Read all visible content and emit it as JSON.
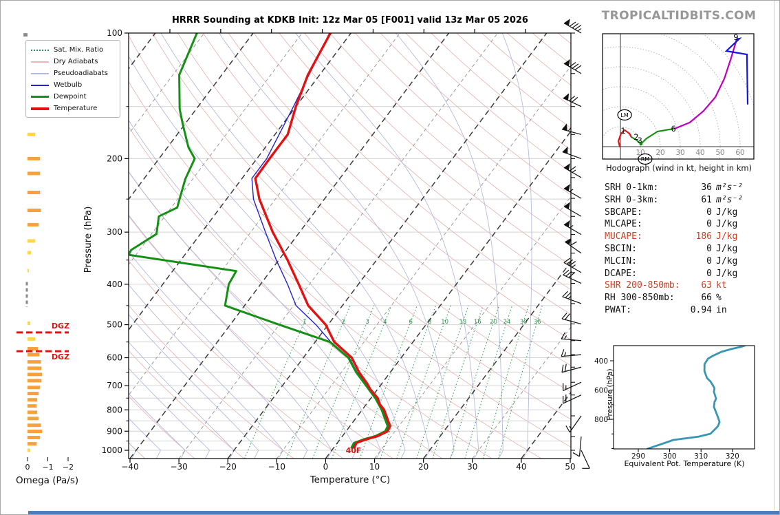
{
  "title": "HRRR Sounding at KDKB Init: 12z Mar 05 [F001] valid 13z Mar 05 2026",
  "watermark": "TROPICALTIDBITS.COM",
  "skewt": {
    "xlabel": "Temperature (°C)",
    "ylabel": "Pressure (hPa)",
    "x_ticks": [
      -40,
      -30,
      -20,
      -10,
      0,
      10,
      20,
      30,
      40,
      50
    ],
    "p_ticks": [
      100,
      200,
      300,
      400,
      500,
      600,
      700,
      800,
      900,
      1000
    ],
    "mix_ratio_labels": [
      1,
      2,
      3,
      4,
      6,
      8,
      10,
      13,
      16,
      20,
      24,
      30,
      36
    ],
    "surface_temp_label": "40F",
    "colors": {
      "temperature": "#e31212",
      "dewpoint": "#149114",
      "wetbulb": "#2222cc",
      "dry_adiabat": "#e6b8b8",
      "pseudoadiabat": "#b4bade",
      "mix_ratio": "#35a055",
      "isotherm_major": "#3a3a3a",
      "isotherm_minor": "#9a9a9a",
      "grid": "#d4d4d4"
    },
    "legend": [
      {
        "label": "Sat. Mix. Ratio",
        "style": "dotted",
        "color": "#2e8b57",
        "width": 2
      },
      {
        "label": "Dry Adiabats",
        "style": "solid",
        "color": "#e6b8b8",
        "width": 2
      },
      {
        "label": "Pseudoadiabats",
        "style": "solid",
        "color": "#b4bade",
        "width": 2
      },
      {
        "label": "Wetbulb",
        "style": "solid",
        "color": "#2222cc",
        "width": 2
      },
      {
        "label": "Dewpoint",
        "style": "solid",
        "color": "#149114",
        "width": 3
      },
      {
        "label": "Temperature",
        "style": "solid",
        "color": "#e31212",
        "width": 4
      }
    ]
  },
  "chart_data": [
    {
      "type": "line",
      "name": "sounding_profile",
      "xlabel": "Temperature (°C)",
      "ylabel": "Pressure (hPa)",
      "x_range": [
        -40,
        50
      ],
      "p_range": [
        100,
        1047
      ],
      "series": [
        {
          "name": "Temperature",
          "color": "#e31212",
          "points_p_T": [
            [
              985,
              4.2
            ],
            [
              960,
              3.9
            ],
            [
              940,
              5.5
            ],
            [
              925,
              7.2
            ],
            [
              900,
              8.5
            ],
            [
              875,
              8.2
            ],
            [
              850,
              7.0
            ],
            [
              800,
              4.5
            ],
            [
              775,
              2.7
            ],
            [
              750,
              1.4
            ],
            [
              714,
              -1.5
            ],
            [
              692,
              -3.0
            ],
            [
              650,
              -6.4
            ],
            [
              600,
              -10.1
            ],
            [
              550,
              -16.1
            ],
            [
              500,
              -20.5
            ],
            [
              450,
              -27.0
            ],
            [
              400,
              -32.2
            ],
            [
              350,
              -38.2
            ],
            [
              300,
              -45.5
            ],
            [
              250,
              -53.3
            ],
            [
              223,
              -57.3
            ],
            [
              200,
              -57.4
            ],
            [
              175,
              -57.4
            ],
            [
              150,
              -60.0
            ],
            [
              126,
              -62.4
            ],
            [
              100,
              -64.2
            ]
          ]
        },
        {
          "name": "Dewpoint",
          "color": "#149114",
          "points_p_T": [
            [
              985,
              3.6
            ],
            [
              960,
              3.4
            ],
            [
              940,
              5.0
            ],
            [
              925,
              6.7
            ],
            [
              900,
              8.0
            ],
            [
              875,
              7.7
            ],
            [
              850,
              6.5
            ],
            [
              800,
              4.0
            ],
            [
              750,
              0.9
            ],
            [
              700,
              -2.9
            ],
            [
              650,
              -7.0
            ],
            [
              600,
              -10.8
            ],
            [
              550,
              -17.0
            ],
            [
              500,
              -30.0
            ],
            [
              450,
              -44.0
            ],
            [
              400,
              -46.5
            ],
            [
              372,
              -47.0
            ],
            [
              340,
              -71.5
            ],
            [
              331,
              -71.7
            ],
            [
              303,
              -69.0
            ],
            [
              275,
              -71.2
            ],
            [
              262,
              -68.8
            ],
            [
              224,
              -71.5
            ],
            [
              200,
              -72.7
            ],
            [
              188,
              -75.7
            ],
            [
              166,
              -80.3
            ],
            [
              152,
              -83.4
            ],
            [
              126,
              -88.7
            ],
            [
              100,
              -91.5
            ]
          ]
        },
        {
          "name": "Wetbulb",
          "color": "#2222cc",
          "points_p_T": [
            [
              985,
              3.9
            ],
            [
              960,
              3.6
            ],
            [
              940,
              5.2
            ],
            [
              925,
              6.9
            ],
            [
              900,
              8.2
            ],
            [
              875,
              7.9
            ],
            [
              850,
              6.7
            ],
            [
              800,
              4.2
            ],
            [
              750,
              1.1
            ],
            [
              700,
              -2.7
            ],
            [
              650,
              -6.8
            ],
            [
              600,
              -10.6
            ],
            [
              550,
              -16.8
            ],
            [
              500,
              -22.5
            ],
            [
              450,
              -29.5
            ],
            [
              400,
              -34.5
            ],
            [
              350,
              -40.5
            ],
            [
              300,
              -47.0
            ],
            [
              250,
              -54.5
            ],
            [
              223,
              -58.0
            ],
            [
              200,
              -58.0
            ],
            [
              150,
              -60.5
            ],
            [
              100,
              -64.4
            ]
          ]
        }
      ]
    },
    {
      "type": "line",
      "name": "hodograph",
      "units": "kt",
      "ring_interval_kt": 10,
      "tick_labels": [
        10,
        20,
        30,
        40,
        50,
        60
      ],
      "series": [
        {
          "name": "0-1 km",
          "color": "#e31212",
          "uv": [
            [
              -0.3,
              0
            ],
            [
              -1,
              2.8
            ],
            [
              0.3,
              6.6
            ],
            [
              2.1,
              8.3
            ],
            [
              4.5,
              6.6
            ],
            [
              5.5,
              4.8
            ]
          ]
        },
        {
          "name": "1-6 km",
          "color": "#149114",
          "uv": [
            [
              5.5,
              4.8
            ],
            [
              7.9,
              3.4
            ],
            [
              10.3,
              1.4
            ],
            [
              13.1,
              4.1
            ],
            [
              18.6,
              7.6
            ],
            [
              24.5,
              8.6
            ],
            [
              27.2,
              9.0
            ]
          ]
        },
        {
          "name": "6-9 km",
          "color": "#bd00bd",
          "uv": [
            [
              27.2,
              9.0
            ],
            [
              34.8,
              12.1
            ],
            [
              41.7,
              17.9
            ],
            [
              47.6,
              24.8
            ],
            [
              52.1,
              34.1
            ],
            [
              55.5,
              44.5
            ],
            [
              58.3,
              53.8
            ]
          ]
        },
        {
          "name": "9+ km",
          "color": "#1414dd",
          "uv": [
            [
              58.3,
              53.8
            ],
            [
              59.7,
              54.1
            ],
            [
              53.1,
              47.9
            ],
            [
              63.4,
              46.2
            ],
            [
              63.8,
              21.4
            ]
          ]
        }
      ],
      "height_labels": [
        {
          "text": "1",
          "u": 1.4,
          "v": 7.9
        },
        {
          "text": "2",
          "u": 7.9,
          "v": 4.8
        },
        {
          "text": "3",
          "u": 9.7,
          "v": 3.1
        },
        {
          "text": "6",
          "u": 26.6,
          "v": 9.0
        },
        {
          "text": "9",
          "u": 57.9,
          "v": 54.8
        }
      ],
      "storm_motion_markers": [
        {
          "text": "LM",
          "u": 2.1,
          "v": 15.9
        },
        {
          "text": "RM",
          "u": 12.4,
          "v": -6.2
        }
      ]
    },
    {
      "type": "line",
      "name": "theta_e_profile",
      "color": "#3796b4",
      "xlabel": "Equivalent Pot. Temperature (K)",
      "ylabel": "Pressure (hPa)",
      "points_K_p": [
        [
          292.9,
          1002
        ],
        [
          301.2,
          941
        ],
        [
          309.3,
          918
        ],
        [
          313.0,
          899
        ],
        [
          314.3,
          871
        ],
        [
          315.4,
          847
        ],
        [
          315.9,
          819
        ],
        [
          315.4,
          786
        ],
        [
          314.8,
          753
        ],
        [
          314.1,
          715
        ],
        [
          314.3,
          682
        ],
        [
          314.8,
          659
        ],
        [
          314.1,
          612
        ],
        [
          314.3,
          588
        ],
        [
          313.7,
          565
        ],
        [
          313.0,
          541
        ],
        [
          311.9,
          518
        ],
        [
          311.1,
          471
        ],
        [
          311.1,
          424
        ],
        [
          312.2,
          386
        ],
        [
          313.7,
          367
        ],
        [
          316.5,
          339
        ],
        [
          319.6,
          320
        ],
        [
          322.5,
          306
        ],
        [
          324.0,
          296
        ]
      ]
    },
    {
      "type": "bar",
      "name": "omega",
      "x_unit": "Pa/s",
      "x_ticks": [
        0,
        -1,
        -2
      ],
      "bars_p_omega": [
        [
          101,
          0.2
        ],
        [
          126,
          0.1
        ],
        [
          151,
          -0.17
        ],
        [
          175,
          -0.38
        ],
        [
          200,
          -0.62
        ],
        [
          217,
          -0.62
        ],
        [
          241,
          -0.62
        ],
        [
          266,
          -0.66
        ],
        [
          288,
          -0.55
        ],
        [
          315,
          -0.38
        ],
        [
          336,
          -0.17
        ],
        [
          371,
          -0.07
        ],
        [
          496,
          -0.14
        ],
        [
          541,
          -0.38
        ],
        [
          571,
          -0.52
        ],
        [
          590,
          -0.59
        ],
        [
          614,
          -0.66
        ],
        [
          636,
          -0.69
        ],
        [
          658,
          -0.72
        ],
        [
          681,
          -0.69
        ],
        [
          707,
          -0.62
        ],
        [
          731,
          -0.55
        ],
        [
          757,
          -0.48
        ],
        [
          783,
          -0.45
        ],
        [
          811,
          -0.48
        ],
        [
          839,
          -0.55
        ],
        [
          871,
          -0.66
        ],
        [
          901,
          -0.72
        ],
        [
          932,
          -0.62
        ],
        [
          965,
          -0.45
        ],
        [
          1000,
          -0.14
        ]
      ],
      "zero_dash_p": [
        395,
        454
      ],
      "dgz_lines_p": [
        522,
        579
      ]
    },
    {
      "type": "barbs",
      "name": "wind_barbs",
      "units": "kt",
      "levels_p_spd_dir": [
        [
          100,
          85,
          300
        ],
        [
          125,
          80,
          300
        ],
        [
          150,
          70,
          295
        ],
        [
          175,
          55,
          285
        ],
        [
          200,
          50,
          290
        ],
        [
          222,
          65,
          300
        ],
        [
          249,
          55,
          300
        ],
        [
          275,
          50,
          300
        ],
        [
          304,
          55,
          300
        ],
        [
          337,
          60,
          305
        ],
        [
          375,
          35,
          300
        ],
        [
          398,
          30,
          295
        ],
        [
          445,
          25,
          290
        ],
        [
          498,
          20,
          285
        ],
        [
          546,
          15,
          275
        ],
        [
          590,
          15,
          265
        ],
        [
          632,
          20,
          255
        ],
        [
          687,
          15,
          245
        ],
        [
          737,
          20,
          245
        ],
        [
          827,
          15,
          215
        ],
        [
          927,
          10,
          185
        ],
        [
          1000,
          8,
          155
        ]
      ]
    }
  ],
  "stats": {
    "rows": [
      {
        "label": "SRH 0-1km:",
        "value": "36",
        "unit": "m²s⁻²",
        "highlight": false,
        "italic_unit": true
      },
      {
        "label": "SRH 0-3km:",
        "value": "61",
        "unit": "m²s⁻²",
        "highlight": false,
        "italic_unit": true
      },
      {
        "label": "SBCAPE:",
        "value": "0",
        "unit": "J/kg",
        "highlight": false,
        "italic_unit": false
      },
      {
        "label": "MLCAPE:",
        "value": "0",
        "unit": "J/kg",
        "highlight": false,
        "italic_unit": false
      },
      {
        "label": "MUCAPE:",
        "value": "186",
        "unit": "J/kg",
        "highlight": true,
        "italic_unit": false
      },
      {
        "label": "SBCIN:",
        "value": "0",
        "unit": "J/kg",
        "highlight": false,
        "italic_unit": false
      },
      {
        "label": "MLCIN:",
        "value": "0",
        "unit": "J/kg",
        "highlight": false,
        "italic_unit": false
      },
      {
        "label": "DCAPE:",
        "value": "0",
        "unit": "J/kg",
        "highlight": false,
        "italic_unit": false
      },
      {
        "label": "SHR 200-850mb:",
        "value": "63",
        "unit": "kt",
        "highlight": true,
        "italic_unit": false
      },
      {
        "label": "RH 300-850mb:",
        "value": "66",
        "unit": "%",
        "highlight": false,
        "italic_unit": false
      },
      {
        "label": "PWAT:",
        "value": "0.94",
        "unit": "in",
        "highlight": false,
        "italic_unit": false
      }
    ]
  },
  "hodograph_panel": {
    "caption": "Hodograph (wind in kt, height in km)"
  },
  "omega_panel": {
    "xlabel": "Omega (Pa/s)",
    "tick_labels": [
      "0",
      "−1",
      "−2"
    ],
    "dgz_label": "DGZ"
  },
  "thetae_panel": {
    "xlabel": "Equivalent Pot. Temperature (K)",
    "ylabel": "Pressure (hPa)",
    "x_ticks": [
      290,
      300,
      310,
      320
    ],
    "y_ticks": [
      400,
      600,
      800
    ]
  }
}
